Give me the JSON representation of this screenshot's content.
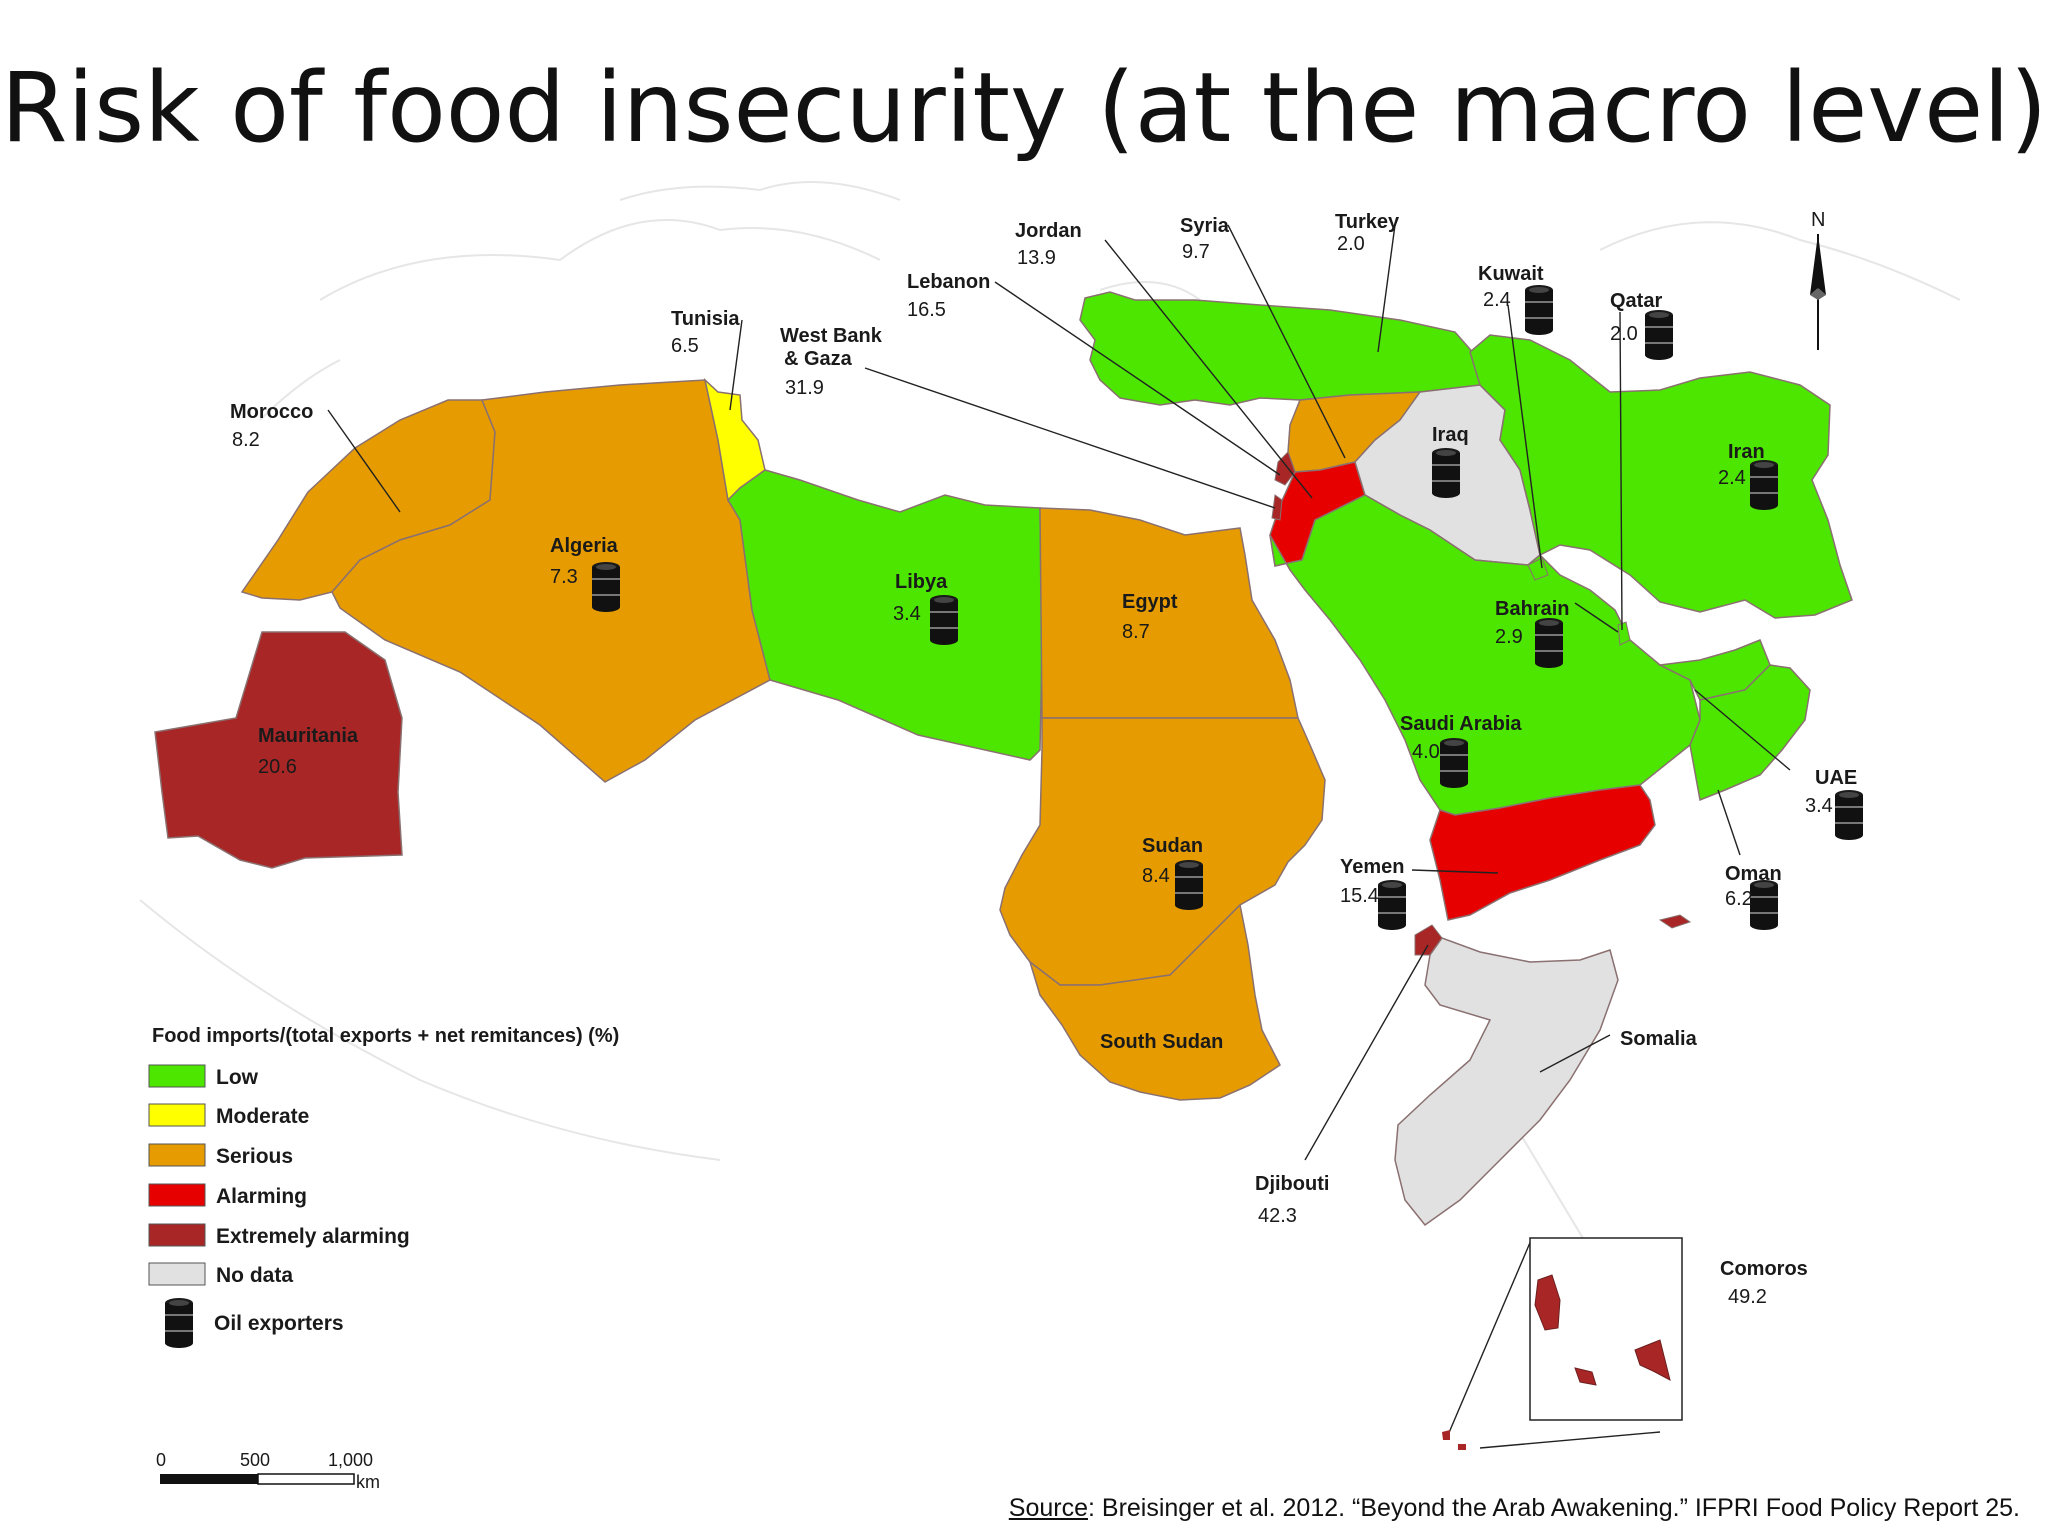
{
  "title": "Risk of food insecurity (at the macro level)",
  "colors": {
    "low": "#4ce600",
    "moderate": "#ffff00",
    "serious": "#e69c00",
    "alarming": "#e60000",
    "extremely_alarming": "#a82626",
    "no_data": "#e1e1e1"
  },
  "legend": {
    "title": "Food imports/(total exports + net remitances) (%)",
    "items": [
      {
        "label": "Low",
        "color": "#4ce600"
      },
      {
        "label": "Moderate",
        "color": "#ffff00"
      },
      {
        "label": "Serious",
        "color": "#e69c00"
      },
      {
        "label": "Alarming",
        "color": "#e60000"
      },
      {
        "label": "Extremely alarming",
        "color": "#a82626"
      },
      {
        "label": "No data",
        "color": "#e1e1e1"
      }
    ],
    "oil_label": "Oil exporters"
  },
  "countries": {
    "morocco": {
      "name": "Morocco",
      "value": "8.2"
    },
    "algeria": {
      "name": "Algeria",
      "value": "7.3"
    },
    "tunisia": {
      "name": "Tunisia",
      "value": "6.5"
    },
    "libya": {
      "name": "Libya",
      "value": "3.4"
    },
    "egypt": {
      "name": "Egypt",
      "value": "8.7"
    },
    "mauritania": {
      "name": "Mauritania",
      "value": "20.6"
    },
    "sudan": {
      "name": "Sudan",
      "value": "8.4"
    },
    "south_sudan": {
      "name": "South Sudan"
    },
    "west_bank": {
      "name_line1": "West Bank",
      "name_line2": "& Gaza",
      "value": "31.9"
    },
    "lebanon": {
      "name": "Lebanon",
      "value": "16.5"
    },
    "jordan": {
      "name": "Jordan",
      "value": "13.9"
    },
    "syria": {
      "name": "Syria",
      "value": "9.7"
    },
    "turkey": {
      "name": "Turkey",
      "value": "2.0"
    },
    "kuwait": {
      "name": "Kuwait",
      "value": "2.4"
    },
    "qatar": {
      "name": "Qatar",
      "value": "2.0"
    },
    "iraq": {
      "name": "Iraq"
    },
    "iran": {
      "name": "Iran",
      "value": "2.4"
    },
    "bahrain": {
      "name": "Bahrain",
      "value": "2.9"
    },
    "saudi_arabia": {
      "name": "Saudi Arabia",
      "value": "4.0"
    },
    "uae": {
      "name": "UAE",
      "value": "3.4"
    },
    "oman": {
      "name": "Oman",
      "value": "6.2"
    },
    "yemen": {
      "name": "Yemen",
      "value": "15.4"
    },
    "somalia": {
      "name": "Somalia"
    },
    "djibouti": {
      "name": "Djibouti",
      "value": "42.3"
    },
    "comoros": {
      "name": "Comoros",
      "value": "49.2"
    }
  },
  "scale_bar": {
    "label_0": "0",
    "label_500": "500",
    "label_1000": "1,000",
    "unit": "km"
  },
  "north": "N",
  "source": {
    "key": "Source",
    "text": ": Breisinger et al. 2012. “Beyond the Arab Awakening.” IFPRI Food Policy Report 25."
  }
}
